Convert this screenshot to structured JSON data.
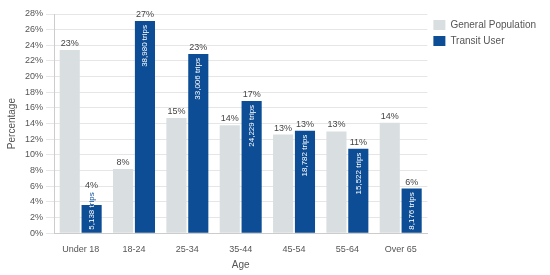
{
  "chart_data": {
    "type": "bar",
    "x_label": "Age",
    "y_label": "Percentage",
    "categories": [
      "Under 18",
      "18-24",
      "25-34",
      "35-44",
      "45-54",
      "55-64",
      "Over 65"
    ],
    "series": [
      {
        "name": "General Population",
        "color": "#d9dfe0",
        "values": [
          23.4,
          8.2,
          14.7,
          13.8,
          12.6,
          13.0,
          14.1
        ],
        "value_labels": [
          "23%",
          "8%",
          "15%",
          "14%",
          "13%",
          "13%",
          "14%"
        ]
      },
      {
        "name": "Transit User",
        "color": "#0c4d95",
        "values": [
          3.6,
          27.1,
          22.9,
          16.9,
          13.1,
          10.8,
          5.7
        ],
        "value_labels": [
          "4%",
          "27%",
          "23%",
          "17%",
          "13%",
          "11%",
          "6%"
        ],
        "trip_labels": [
          "5,138 trips",
          "38,980 trips",
          "33,006 trips",
          "24,229 trips",
          "18,782 trips",
          "15,522 trips",
          "8,176 trips"
        ]
      }
    ],
    "ylim": [
      0,
      28
    ],
    "yticks": [
      {
        "value": 0,
        "label": "0%"
      },
      {
        "value": 2,
        "label": "2%"
      },
      {
        "value": 4,
        "label": "4%"
      },
      {
        "value": 6,
        "label": "6%"
      },
      {
        "value": 8,
        "label": "8%"
      },
      {
        "value": 10,
        "label": "10%"
      },
      {
        "value": 12,
        "label": "12%"
      },
      {
        "value": 14,
        "label": "14%"
      },
      {
        "value": 16,
        "label": "16%"
      },
      {
        "value": 18,
        "label": "18%"
      },
      {
        "value": 20,
        "label": "20%"
      },
      {
        "value": 22,
        "label": "22%"
      },
      {
        "value": 24,
        "label": "24%"
      },
      {
        "value": 26,
        "label": "26%"
      },
      {
        "value": 28,
        "label": "28%"
      }
    ],
    "grid": true,
    "legend": "top-right",
    "data_labels": true
  }
}
